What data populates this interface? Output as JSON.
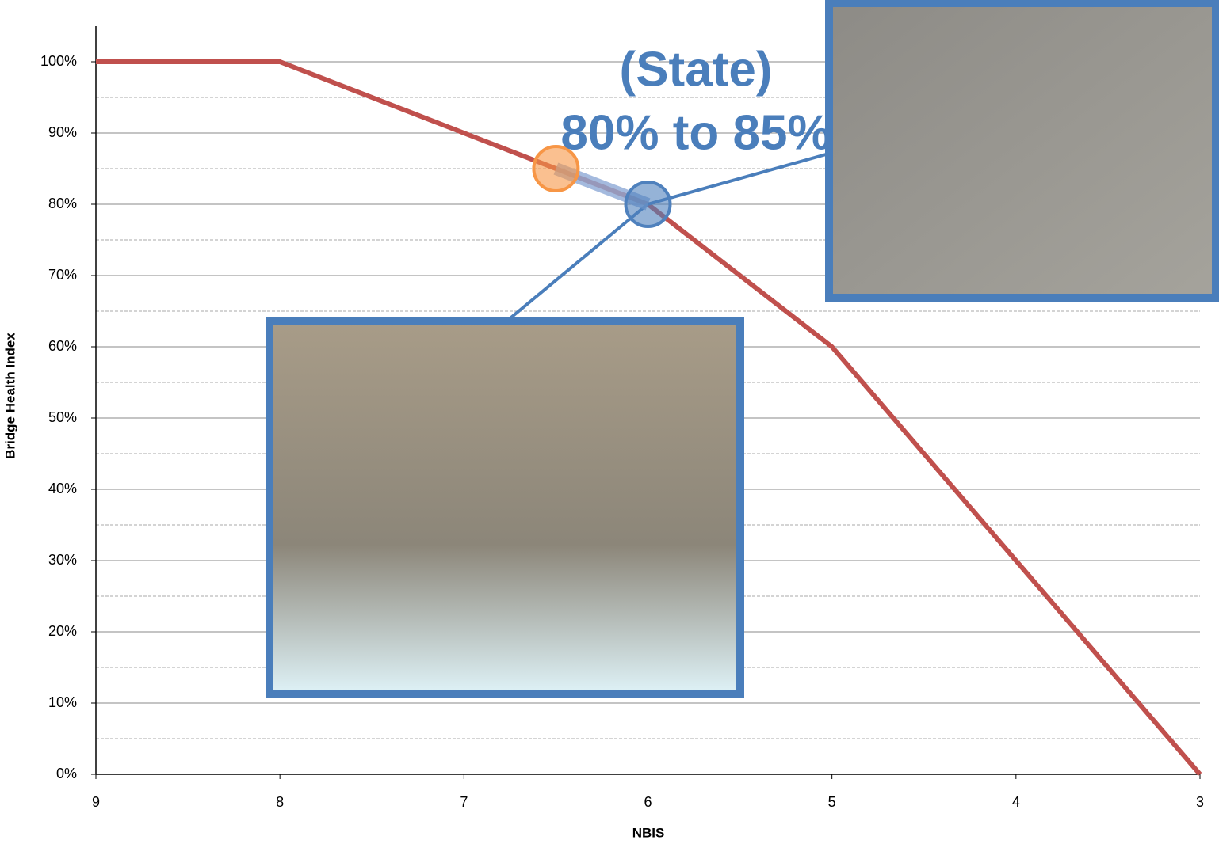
{
  "chart_data": {
    "type": "line",
    "x_label": "NBIS",
    "y_label": "Bridge Health Index",
    "x": [
      9,
      8,
      7,
      6,
      5,
      4,
      3
    ],
    "series": [
      {
        "name": "Bridge Health Index",
        "color": "#c0504d",
        "values": [
          100,
          100,
          90,
          80,
          60,
          30,
          0
        ]
      }
    ],
    "xlim": [
      9,
      3
    ],
    "xticks": [
      9,
      8,
      7,
      6,
      5,
      4,
      3
    ],
    "ylim": [
      0,
      105
    ],
    "yticks": [
      {
        "value": 0,
        "label": "0%"
      },
      {
        "value": 10,
        "label": "10%"
      },
      {
        "value": 20,
        "label": "20%"
      },
      {
        "value": 30,
        "label": "30%"
      },
      {
        "value": 40,
        "label": "40%"
      },
      {
        "value": 50,
        "label": "50%"
      },
      {
        "value": 60,
        "label": "60%"
      },
      {
        "value": 70,
        "label": "70%"
      },
      {
        "value": 80,
        "label": "80%"
      },
      {
        "value": 90,
        "label": "90%"
      },
      {
        "value": 100,
        "label": "100%"
      }
    ],
    "y_minor_ticks": [
      5,
      15,
      25,
      35,
      45,
      55,
      65,
      75,
      85,
      95
    ],
    "grid": true,
    "highlights": [
      {
        "x": 6.5,
        "y": 85,
        "color": "#f79646"
      },
      {
        "x": 6,
        "y": 80,
        "color": "#4f81bd"
      }
    ],
    "annotation": [
      "(State)",
      "80% to 85%"
    ]
  }
}
